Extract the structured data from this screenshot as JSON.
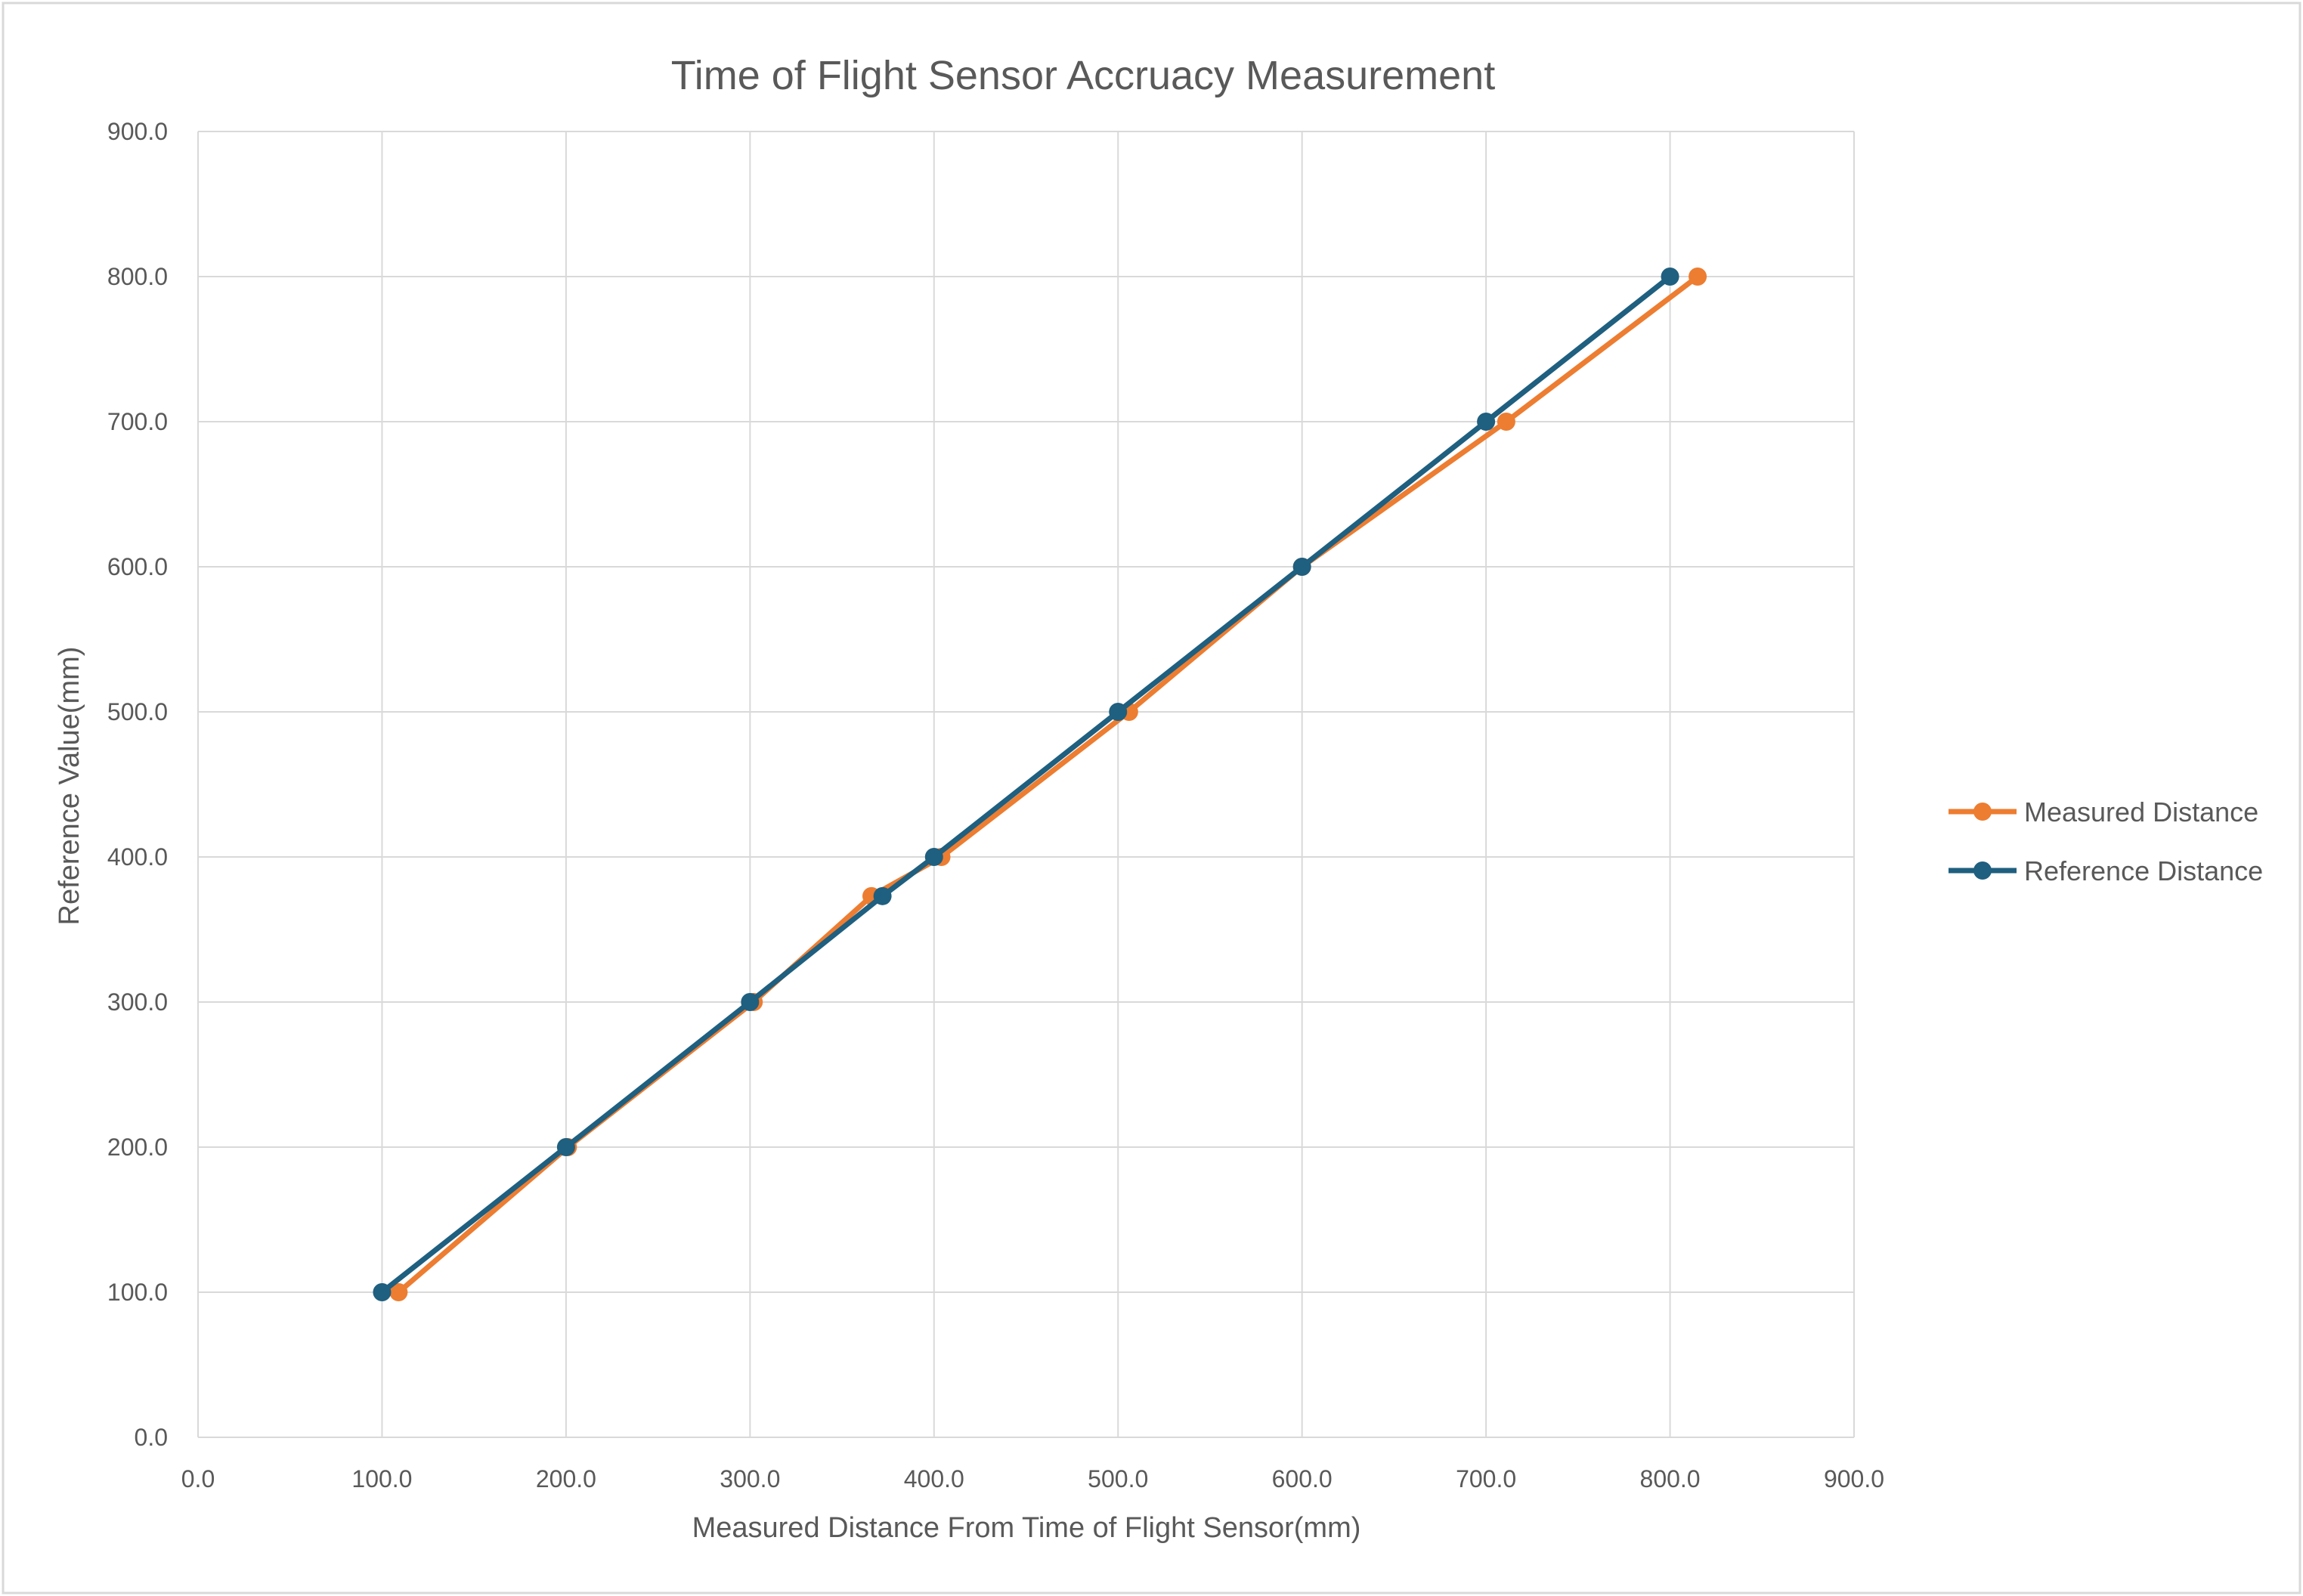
{
  "chart_data": {
    "type": "line",
    "title": "Time of Flight Sensor Accruacy Measurement",
    "xlabel": "Measured Distance  From Time of Flight Sensor(mm)",
    "ylabel": "Reference Value(mm)",
    "xlim": [
      0,
      900
    ],
    "ylim": [
      0,
      900
    ],
    "xticks": [
      "0.0",
      "100.0",
      "200.0",
      "300.0",
      "400.0",
      "500.0",
      "600.0",
      "700.0",
      "800.0",
      "900.0"
    ],
    "yticks": [
      "0.0",
      "100.0",
      "200.0",
      "300.0",
      "400.0",
      "500.0",
      "600.0",
      "700.0",
      "800.0",
      "900.0"
    ],
    "grid": true,
    "legend_position": "right",
    "series": [
      {
        "name": "Measured Distance",
        "color": "#ED7D31",
        "points": [
          {
            "x": 109,
            "y": 100
          },
          {
            "x": 201,
            "y": 200
          },
          {
            "x": 302,
            "y": 300
          },
          {
            "x": 366,
            "y": 373
          },
          {
            "x": 404,
            "y": 400
          },
          {
            "x": 506,
            "y": 500
          },
          {
            "x": 600,
            "y": 600
          },
          {
            "x": 711,
            "y": 700
          },
          {
            "x": 815,
            "y": 800
          }
        ]
      },
      {
        "name": "Reference Distance",
        "color": "#1F5F7F",
        "points": [
          {
            "x": 100,
            "y": 100
          },
          {
            "x": 200,
            "y": 200
          },
          {
            "x": 300,
            "y": 300
          },
          {
            "x": 372,
            "y": 373
          },
          {
            "x": 400,
            "y": 400
          },
          {
            "x": 500,
            "y": 500
          },
          {
            "x": 600,
            "y": 600
          },
          {
            "x": 700,
            "y": 700
          },
          {
            "x": 800,
            "y": 800
          }
        ]
      }
    ]
  }
}
